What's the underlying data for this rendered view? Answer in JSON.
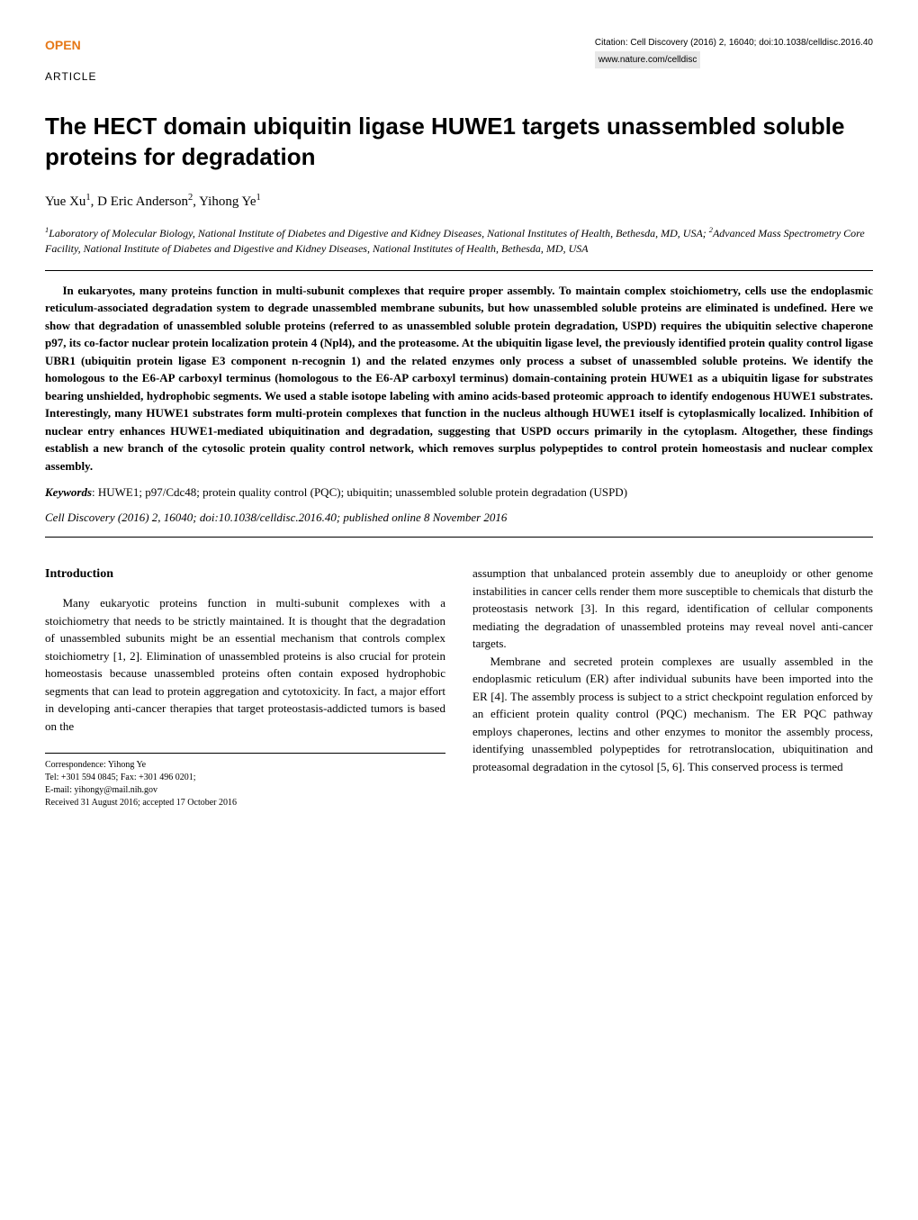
{
  "header": {
    "open_label": "OPEN",
    "article_label": "ARTICLE",
    "citation": "Citation: Cell Discovery (2016) 2, 16040; doi:10.1038/celldisc.2016.40",
    "url": "www.nature.com/celldisc"
  },
  "title": "The HECT domain ubiquitin ligase HUWE1 targets unassembled soluble proteins for degradation",
  "authors": {
    "a1_name": "Yue Xu",
    "a1_sup": "1",
    "a2_name": ", D Eric Anderson",
    "a2_sup": "2",
    "a3_name": ", Yihong Ye",
    "a3_sup": "1"
  },
  "affiliations": {
    "aff1_sup": "1",
    "aff1_text": "Laboratory of Molecular Biology, National Institute of Diabetes and Digestive and Kidney Diseases, National Institutes of Health, Bethesda, MD, USA; ",
    "aff2_sup": "2",
    "aff2_text": "Advanced Mass Spectrometry Core Facility, National Institute of Diabetes and Digestive and Kidney Diseases, National Institutes of Health, Bethesda, MD, USA"
  },
  "abstract": "In eukaryotes, many proteins function in multi-subunit complexes that require proper assembly. To maintain complex stoichiometry, cells use the endoplasmic reticulum-associated degradation system to degrade unassembled membrane subunits, but how unassembled soluble proteins are eliminated is undefined. Here we show that degradation of unassembled soluble proteins (referred to as unassembled soluble protein degradation, USPD) requires the ubiquitin selective chaperone p97, its co-factor nuclear protein localization protein 4 (Npl4), and the proteasome. At the ubiquitin ligase level, the previously identified protein quality control ligase UBR1 (ubiquitin protein ligase E3 component n-recognin 1) and the related enzymes only process a subset of unassembled soluble proteins. We identify the homologous to the E6-AP carboxyl terminus (homologous to the E6-AP carboxyl terminus) domain-containing protein HUWE1 as a ubiquitin ligase for substrates bearing unshielded, hydrophobic segments. We used a stable isotope labeling with amino acids-based proteomic approach to identify endogenous HUWE1 substrates. Interestingly, many HUWE1 substrates form multi-protein complexes that function in the nucleus although HUWE1 itself is cytoplasmically localized. Inhibition of nuclear entry enhances HUWE1-mediated ubiquitination and degradation, suggesting that USPD occurs primarily in the cytoplasm. Altogether, these findings establish a new branch of the cytosolic protein quality control network, which removes surplus polypeptides to control protein homeostasis and nuclear complex assembly.",
  "keywords": {
    "label": "Keywords",
    "text": ": HUWE1; p97/Cdc48; protein quality control (PQC); ubiquitin; unassembled soluble protein degradation (USPD)"
  },
  "pub_info": "Cell Discovery (2016) 2, 16040; doi:10.1038/celldisc.2016.40; published online 8 November 2016",
  "body": {
    "intro_heading": "Introduction",
    "para1": "Many eukaryotic proteins function in multi-subunit complexes with a stoichiometry that needs to be strictly maintained. It is thought that the degradation of unassembled subunits might be an essential mechanism that controls complex stoichiometry [1, 2]. Elimination of unassembled proteins is also crucial for protein homeostasis because unassembled proteins often contain exposed hydrophobic segments that can lead to protein aggregation and cytotoxicity. In fact, a major effort in developing anti-cancer therapies that target proteostasis-addicted tumors is based on the",
    "para2": "assumption that unbalanced protein assembly due to aneuploidy or other genome instabilities in cancer cells render them more susceptible to chemicals that disturb the proteostasis network [3]. In this regard, identification of cellular components mediating the degradation of unassembled proteins may reveal novel anti-cancer targets.",
    "para3": "Membrane and secreted protein complexes are usually assembled in the endoplasmic reticulum (ER) after individual subunits have been imported into the ER [4]. The assembly process is subject to a strict checkpoint regulation enforced by an efficient protein quality control (PQC) mechanism. The ER PQC pathway employs chaperones, lectins and other enzymes to monitor the assembly process, identifying unassembled polypeptides for retrotranslocation, ubiquitination and proteasomal degradation in the cytosol [5, 6]. This conserved process is termed"
  },
  "correspondence": {
    "line1": "Correspondence: Yihong Ye",
    "line2": "Tel: +301 594 0845; Fax: +301 496 0201;",
    "line3": "E-mail: yihongy@mail.nih.gov",
    "line4": "Received 31 August 2016; accepted 17 October 2016"
  },
  "styles": {
    "open_color": "#e67817",
    "background": "#ffffff",
    "text_color": "#000000",
    "url_bg": "#e8e8e8",
    "title_fontsize": 26,
    "body_fontsize": 13,
    "header_fontsize": 10,
    "corr_fontsize": 10
  }
}
